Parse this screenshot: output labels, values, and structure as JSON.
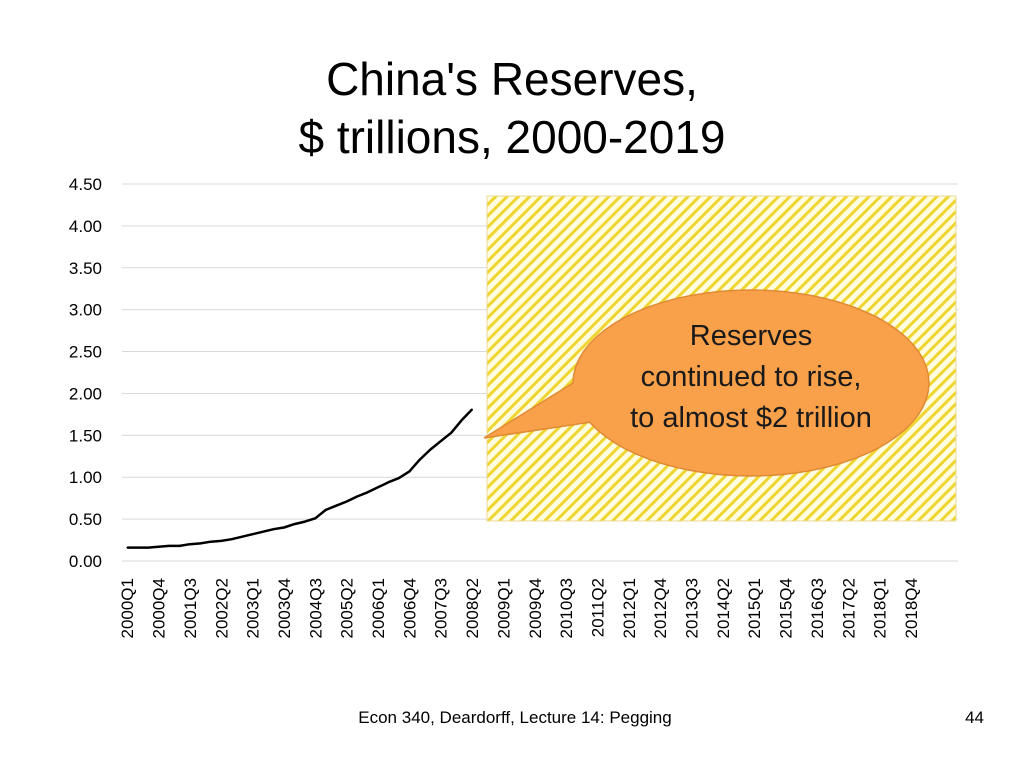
{
  "slide": {
    "title_line1": "China's Reserves,",
    "title_line2": "$ trillions, 2000-2019",
    "footer": "Econ 340, Deardorff, Lecture 14: Pegging",
    "slide_number": "44"
  },
  "callout": {
    "lines": [
      "Reserves",
      "continued to rise,",
      "to almost $2 trillion"
    ],
    "fill": "#F9A04A",
    "text_color": "#1a1a1a"
  },
  "overlay": {
    "fill": "#FFFDE0",
    "stripe": "#F0D531",
    "pattern": "diagonal-hatch"
  },
  "chart_data": {
    "type": "line",
    "title": "",
    "xlabel": "",
    "ylabel": "",
    "ylim": [
      0,
      4.5
    ],
    "y_ticks": [
      "0.00",
      "0.50",
      "1.00",
      "1.50",
      "2.00",
      "2.50",
      "3.00",
      "3.50",
      "4.00",
      "4.50"
    ],
    "grid": true,
    "x_tick_labels": [
      "2000Q1",
      "2000Q4",
      "2001Q3",
      "2002Q2",
      "2003Q1",
      "2003Q4",
      "2004Q3",
      "2005Q2",
      "2006Q1",
      "2006Q4",
      "2007Q3",
      "2008Q2",
      "2009Q1",
      "2009Q4",
      "2010Q3",
      "2011Q2",
      "2012Q1",
      "2012Q4",
      "2013Q3",
      "2014Q2",
      "2015Q1",
      "2015Q4",
      "2016Q3",
      "2017Q2",
      "2018Q1",
      "2018Q4"
    ],
    "series": [
      {
        "color": "#000000",
        "x": [
          "2000Q1",
          "2000Q2",
          "2000Q3",
          "2000Q4",
          "2001Q1",
          "2001Q2",
          "2001Q3",
          "2001Q4",
          "2002Q1",
          "2002Q2",
          "2002Q3",
          "2002Q4",
          "2003Q1",
          "2003Q2",
          "2003Q3",
          "2003Q4",
          "2004Q1",
          "2004Q2",
          "2004Q3",
          "2004Q4",
          "2005Q1",
          "2005Q2",
          "2005Q3",
          "2005Q4",
          "2006Q1",
          "2006Q2",
          "2006Q3",
          "2006Q4",
          "2007Q1",
          "2007Q2",
          "2007Q3",
          "2007Q4",
          "2008Q1",
          "2008Q2"
        ],
        "values": [
          0.16,
          0.16,
          0.16,
          0.17,
          0.18,
          0.18,
          0.2,
          0.21,
          0.23,
          0.24,
          0.26,
          0.29,
          0.32,
          0.35,
          0.38,
          0.4,
          0.44,
          0.47,
          0.51,
          0.61,
          0.66,
          0.71,
          0.77,
          0.82,
          0.88,
          0.94,
          0.99,
          1.07,
          1.21,
          1.33,
          1.43,
          1.53,
          1.68,
          1.81
        ]
      }
    ]
  }
}
